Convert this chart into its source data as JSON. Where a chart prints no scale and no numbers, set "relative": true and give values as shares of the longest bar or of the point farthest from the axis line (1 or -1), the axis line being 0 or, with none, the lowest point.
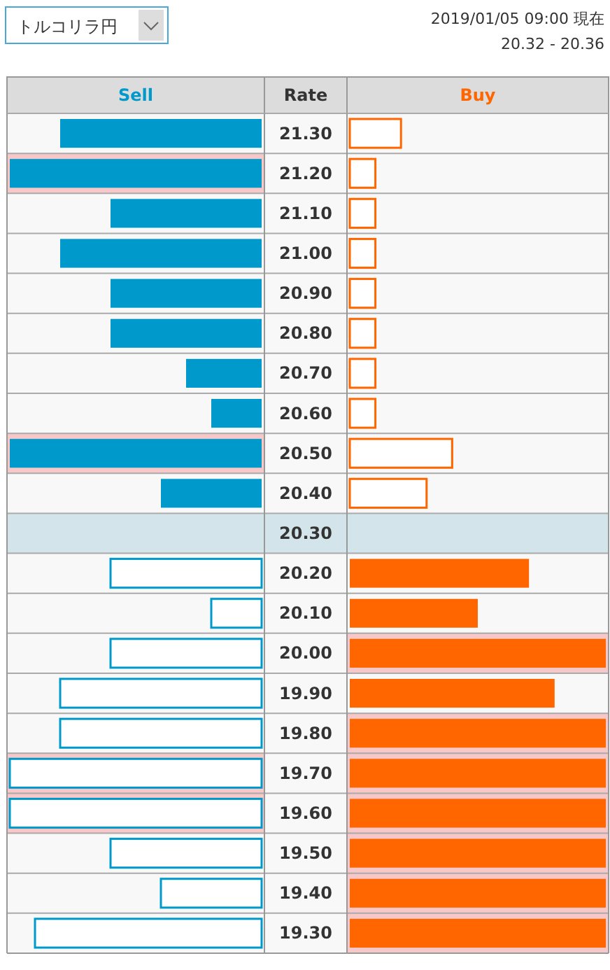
{
  "chart_data": [
    {
      "type": "bar",
      "orientation": "horizontal",
      "relative": true,
      "title": "トルコリラ円",
      "ylabel": "Rate",
      "categories": [
        "21.30",
        "21.20",
        "21.10",
        "21.00",
        "20.90",
        "20.80",
        "20.70",
        "20.60",
        "20.50",
        "20.40",
        "20.30",
        "20.20",
        "20.10",
        "20.00",
        "19.90",
        "19.80",
        "19.70",
        "19.60",
        "19.50",
        "19.40",
        "19.30"
      ],
      "series": [
        {
          "name": "Sell",
          "color": "#0099cc",
          "values": [
            -0.8,
            -1,
            -0.6,
            -0.8,
            -0.6,
            -0.6,
            -0.3,
            -0.2,
            -1,
            -0.4,
            null,
            -0.6,
            -0.2,
            -0.6,
            -0.8,
            -0.8,
            -1,
            -1,
            -0.6,
            -0.4,
            -0.9
          ]
        }
      ],
      "bands": [
        {
          "axis": "y",
          "from": "20.30",
          "to": "20.30",
          "color": "#d3e4ea"
        },
        {
          "axis": "y",
          "from": "21.20",
          "to": "21.20",
          "color": "#f8c8c8"
        },
        {
          "axis": "y",
          "from": "20.50",
          "to": "20.50",
          "color": "#f8c8c8"
        },
        {
          "axis": "y",
          "from": "19.70",
          "to": "19.60",
          "color": "#f8c8c8"
        }
      ]
    },
    {
      "type": "bar",
      "orientation": "horizontal",
      "relative": true,
      "tick_labels": false,
      "subtitle": "2019/01/05 09:00 現在",
      "annotations": [
        "20.32 - 20.36"
      ],
      "categories": [
        "21.30",
        "21.20",
        "21.10",
        "21.00",
        "20.90",
        "20.80",
        "20.70",
        "20.60",
        "20.50",
        "20.40",
        "20.30",
        "20.20",
        "20.10",
        "20.00",
        "19.90",
        "19.80",
        "19.70",
        "19.60",
        "19.50",
        "19.40",
        "19.30"
      ],
      "series": [
        {
          "name": "Buy",
          "color": "#ff6600",
          "values": [
            0.2,
            0.1,
            0.1,
            0.1,
            0.1,
            0.1,
            0.1,
            0.1,
            0.4,
            0.3,
            null,
            0.7,
            0.5,
            1,
            0.8,
            1,
            1,
            1,
            1,
            1,
            1
          ]
        }
      ],
      "bands": [
        {
          "axis": "y",
          "from": "20.30",
          "to": "20.30",
          "color": "#d3e4ea"
        },
        {
          "axis": "y",
          "from": "20.00",
          "to": "20.00",
          "color": "#f8c8c8"
        },
        {
          "axis": "y",
          "from": "19.80",
          "to": "19.30",
          "color": "#f8c8c8"
        }
      ]
    }
  ]
}
